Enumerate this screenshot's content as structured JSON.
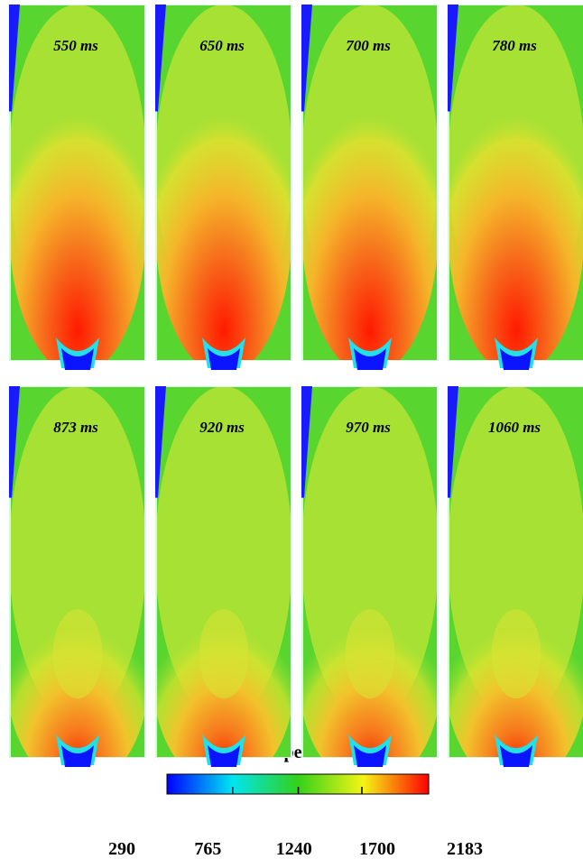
{
  "panels": [
    {
      "label": "550 ms"
    },
    {
      "label": "650 ms"
    },
    {
      "label": "700 ms"
    },
    {
      "label": "780 ms"
    },
    {
      "label": "873 ms"
    },
    {
      "label": "920 ms"
    },
    {
      "label": "970 ms"
    },
    {
      "label": "1060 ms"
    }
  ],
  "colorbar": {
    "title": "Temperature (K)",
    "range": [
      290,
      2183
    ],
    "ticks": [
      290,
      765,
      1240,
      1700,
      2183
    ]
  }
}
